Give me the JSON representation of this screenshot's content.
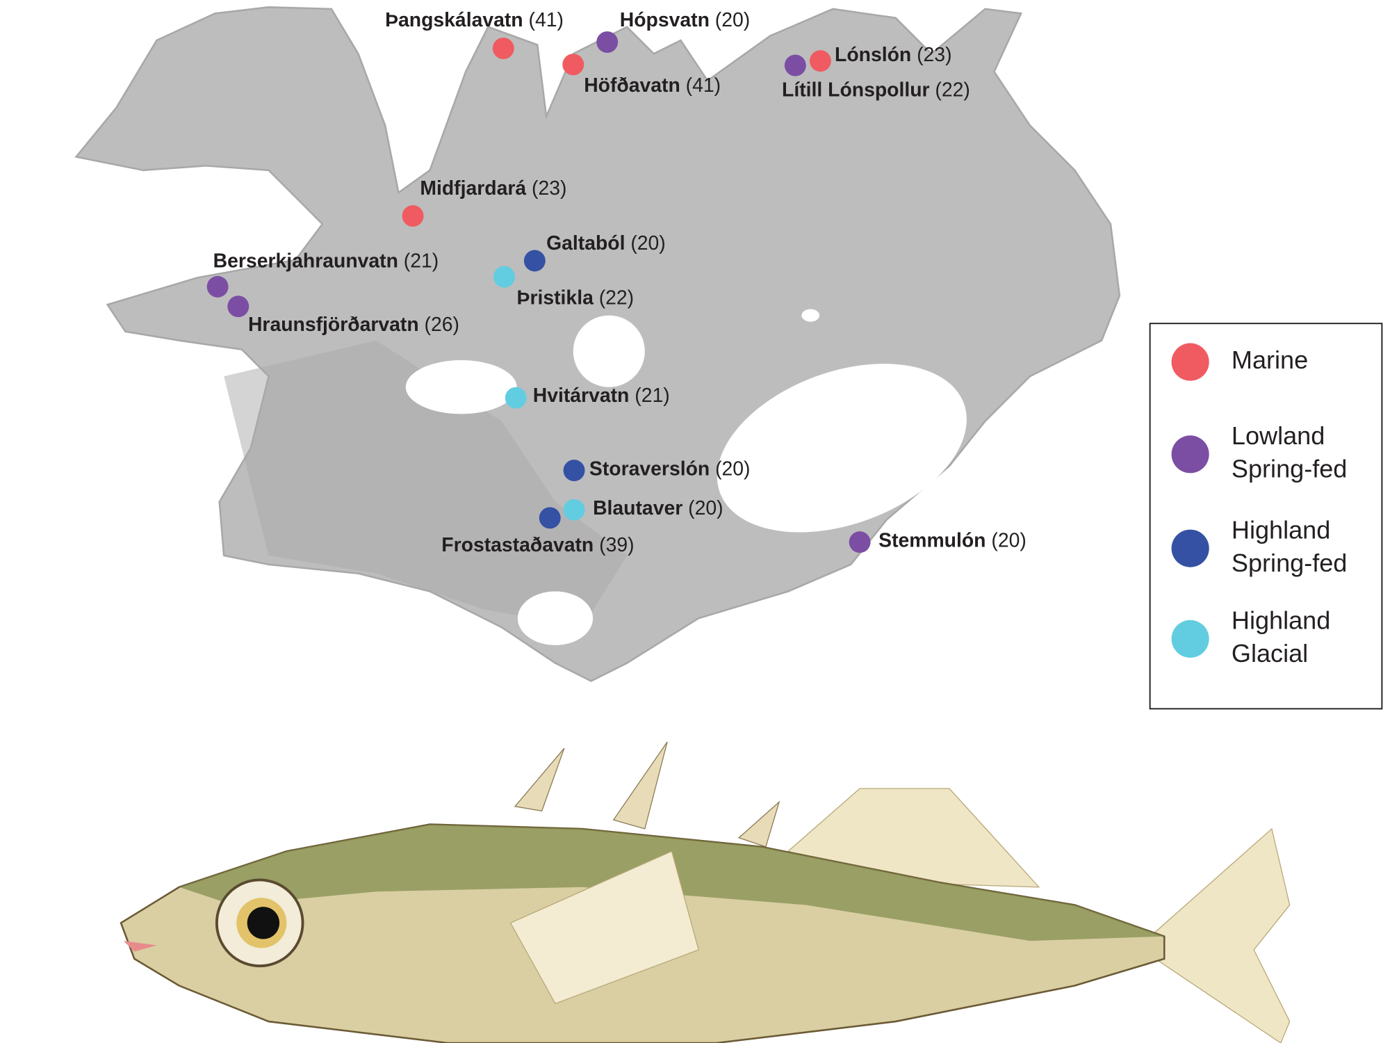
{
  "map": {
    "groups": [
      {
        "label": [
          "Marine"
        ],
        "color": "#ef5b61",
        "sites": [
          {
            "name": "Þangskálavatn",
            "count": "(41)"
          },
          {
            "name": "Höfðavatn",
            "count": "(41)"
          },
          {
            "name": "Lónslón",
            "count": "(23)"
          },
          {
            "name": "Midfjardará",
            "count": "(23)"
          }
        ]
      },
      {
        "label": [
          "Lowland",
          "Spring-fed"
        ],
        "color": "#7b4ea3",
        "sites": [
          {
            "name": "Hópsvatn",
            "count": "(20)"
          },
          {
            "name": "Lítill Lónspollur",
            "count": "(22)"
          },
          {
            "name": "Berserkjahraunvatn",
            "count": "(21)"
          },
          {
            "name": "Hraunsfjörðarvatn",
            "count": "(26)"
          },
          {
            "name": "Stemmulón",
            "count": "(20)"
          }
        ]
      },
      {
        "label": [
          "Highland",
          "Spring-fed"
        ],
        "color": "#3451a4",
        "sites": [
          {
            "name": "Galtaból",
            "count": "(20)"
          },
          {
            "name": "Storaverslón",
            "count": "(20)"
          },
          {
            "name": "Frostastaðavatn",
            "count": "(39)"
          }
        ]
      },
      {
        "label": [
          "Highland",
          "Glacial"
        ],
        "color": "#62cde0",
        "sites": [
          {
            "name": "Þristikla",
            "count": "(22)"
          },
          {
            "name": "Hvitárvatn",
            "count": "(21)"
          },
          {
            "name": "Blautaver",
            "count": "(20)"
          }
        ]
      }
    ]
  }
}
